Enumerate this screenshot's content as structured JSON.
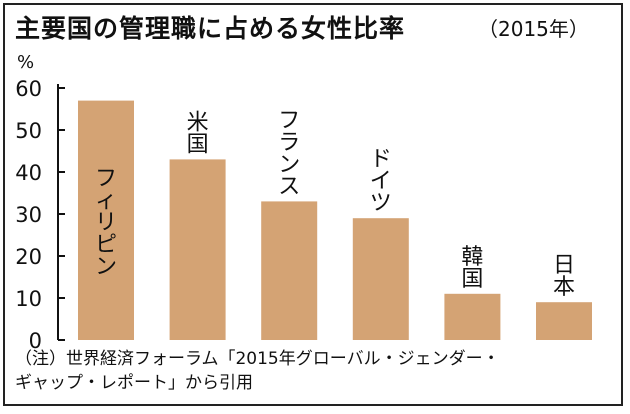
{
  "title": "主要国の管理職に占める女性比率",
  "subtitle": "（2015年）",
  "unit": "%",
  "note_lines": [
    "（注）世界経済フォーラム「2015年グローバル・ジェンダー・",
    "ギャップ・レポート」から引用"
  ],
  "colors": {
    "bar": "#d4a374",
    "axis": "#111111",
    "text": "#111111"
  },
  "chart_data": {
    "type": "bar",
    "title": "主要国の管理職に占める女性比率",
    "subtitle": "（2015年）",
    "ylabel": "%",
    "categories": [
      "フィリピン",
      "米国",
      "フランス",
      "ドイツ",
      "韓国",
      "日本"
    ],
    "values": [
      57,
      43,
      33,
      29,
      11,
      9
    ],
    "ylim": [
      0,
      60
    ],
    "yticks": [
      0,
      10,
      20,
      30,
      40,
      50,
      60
    ],
    "grid": false,
    "legend": "none"
  }
}
